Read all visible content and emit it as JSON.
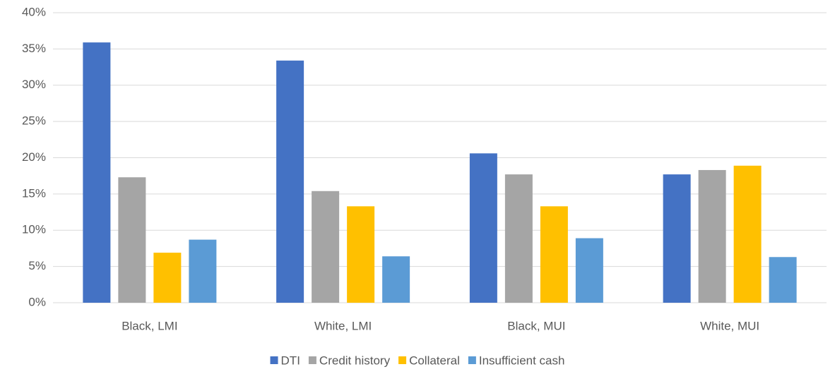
{
  "chart_data": {
    "type": "bar",
    "categories": [
      "Black, LMI",
      "White, LMI",
      "Black, MUI",
      "White, MUI"
    ],
    "series": [
      {
        "name": "DTI",
        "color": "#4472c4",
        "values": [
          35.9,
          33.4,
          20.6,
          17.7
        ]
      },
      {
        "name": "Credit history",
        "color": "#a5a5a5",
        "values": [
          17.3,
          15.4,
          17.7,
          18.3
        ]
      },
      {
        "name": "Collateral",
        "color": "#ffc000",
        "values": [
          6.9,
          13.3,
          13.3,
          18.9
        ]
      },
      {
        "name": "Insufficient cash",
        "color": "#5b9bd5",
        "values": [
          8.7,
          6.4,
          8.9,
          6.3
        ]
      }
    ],
    "ylim": [
      0,
      40
    ],
    "yticks": [
      {
        "value": 0,
        "label": "0%"
      },
      {
        "value": 5,
        "label": "5%"
      },
      {
        "value": 10,
        "label": "10%"
      },
      {
        "value": 15,
        "label": "15%"
      },
      {
        "value": 20,
        "label": "20%"
      },
      {
        "value": 25,
        "label": "25%"
      },
      {
        "value": 30,
        "label": "30%"
      },
      {
        "value": 35,
        "label": "35%"
      },
      {
        "value": 40,
        "label": "40%"
      }
    ],
    "grid": true,
    "legend": "bottom"
  }
}
